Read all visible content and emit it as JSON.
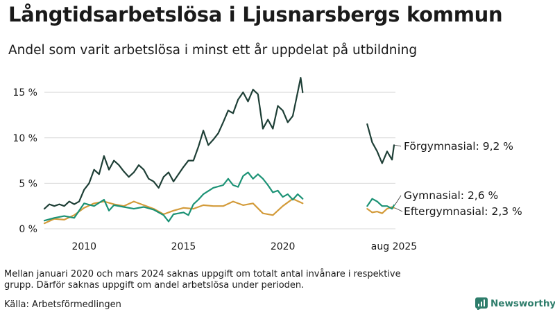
{
  "title": "Långtidsarbetslösa i Ljusnarsbergs kommun",
  "subtitle": "Andel som varit arbetslösa i minst ett år uppdelat på utbildning",
  "footnote": "Mellan januari 2020 och mars 2024 saknas uppgift om totalt antal invånare i respektive grupp. Därför saknas uppgift om andel arbetslösa under perioden.",
  "source": "Källa: Arbetsförmedlingen",
  "brand": "Newsworthy",
  "chart_data": {
    "type": "line",
    "title": "Långtidsarbetslösa i Ljusnarsbergs kommun",
    "subtitle": "Andel som varit arbetslösa i minst ett år uppdelat på utbildning",
    "xlabel": "",
    "ylabel": "",
    "ylim": [
      0,
      16
    ],
    "xlim": [
      2008,
      2026
    ],
    "y_ticks": [
      0,
      5,
      10,
      15
    ],
    "y_tick_labels": [
      "0 %",
      "5 %",
      "10 %",
      "15 %"
    ],
    "x_ticks": [
      2010,
      2015,
      2020,
      2025.6
    ],
    "x_tick_labels": [
      "2010",
      "2015",
      "2020",
      "aug 2025"
    ],
    "grid": true,
    "series": [
      {
        "name": "Förgymnasial",
        "label": "Förgymnasial: 9,2 %",
        "color": "#1e3f36",
        "segments": [
          [
            [
              2008.0,
              2.2
            ],
            [
              2008.25,
              2.7
            ],
            [
              2008.5,
              2.5
            ],
            [
              2008.75,
              2.7
            ],
            [
              2009.0,
              2.5
            ],
            [
              2009.25,
              3.0
            ],
            [
              2009.5,
              2.7
            ],
            [
              2009.75,
              3.0
            ],
            [
              2010.0,
              4.3
            ],
            [
              2010.25,
              5.0
            ],
            [
              2010.5,
              6.5
            ],
            [
              2010.75,
              6.0
            ],
            [
              2011.0,
              8.0
            ],
            [
              2011.25,
              6.5
            ],
            [
              2011.5,
              7.5
            ],
            [
              2011.75,
              7.0
            ],
            [
              2012.0,
              6.3
            ],
            [
              2012.25,
              5.7
            ],
            [
              2012.5,
              6.2
            ],
            [
              2012.75,
              7.0
            ],
            [
              2013.0,
              6.5
            ],
            [
              2013.25,
              5.5
            ],
            [
              2013.5,
              5.2
            ],
            [
              2013.75,
              4.5
            ],
            [
              2014.0,
              5.7
            ],
            [
              2014.25,
              6.2
            ],
            [
              2014.5,
              5.2
            ],
            [
              2014.75,
              6.0
            ],
            [
              2015.0,
              6.8
            ],
            [
              2015.25,
              7.5
            ],
            [
              2015.5,
              7.5
            ],
            [
              2015.75,
              9.0
            ],
            [
              2016.0,
              10.8
            ],
            [
              2016.25,
              9.2
            ],
            [
              2016.5,
              9.8
            ],
            [
              2016.75,
              10.5
            ],
            [
              2017.0,
              11.7
            ],
            [
              2017.25,
              13.0
            ],
            [
              2017.5,
              12.7
            ],
            [
              2017.75,
              14.2
            ],
            [
              2018.0,
              15.0
            ],
            [
              2018.25,
              14.0
            ],
            [
              2018.5,
              15.3
            ],
            [
              2018.75,
              14.8
            ],
            [
              2019.0,
              11.0
            ],
            [
              2019.25,
              12.0
            ],
            [
              2019.5,
              11.0
            ],
            [
              2019.75,
              13.5
            ],
            [
              2020.0,
              13.0
            ],
            [
              2020.25,
              11.7
            ],
            [
              2020.5,
              12.4
            ],
            [
              2020.75,
              15.0
            ],
            [
              2020.9,
              16.6
            ],
            [
              2021.0,
              15.0
            ]
          ],
          [
            [
              2024.25,
              11.5
            ],
            [
              2024.5,
              9.5
            ],
            [
              2024.75,
              8.5
            ],
            [
              2025.0,
              7.2
            ],
            [
              2025.25,
              8.5
            ],
            [
              2025.5,
              7.6
            ],
            [
              2025.6,
              9.2
            ]
          ]
        ]
      },
      {
        "name": "Gymnasial",
        "label": "Gymnasial: 2,6 %",
        "color": "#1b9275",
        "segments": [
          [
            [
              2008.0,
              0.9
            ],
            [
              2008.5,
              1.2
            ],
            [
              2009.0,
              1.4
            ],
            [
              2009.5,
              1.2
            ],
            [
              2010.0,
              2.8
            ],
            [
              2010.5,
              2.5
            ],
            [
              2011.0,
              3.2
            ],
            [
              2011.25,
              2.0
            ],
            [
              2011.5,
              2.6
            ],
            [
              2012.0,
              2.4
            ],
            [
              2012.5,
              2.2
            ],
            [
              2013.0,
              2.4
            ],
            [
              2013.5,
              2.1
            ],
            [
              2014.0,
              1.5
            ],
            [
              2014.25,
              0.8
            ],
            [
              2014.5,
              1.6
            ],
            [
              2015.0,
              1.8
            ],
            [
              2015.25,
              1.5
            ],
            [
              2015.5,
              2.7
            ],
            [
              2015.75,
              3.2
            ],
            [
              2016.0,
              3.8
            ],
            [
              2016.5,
              4.5
            ],
            [
              2017.0,
              4.8
            ],
            [
              2017.25,
              5.5
            ],
            [
              2017.5,
              4.8
            ],
            [
              2017.75,
              4.6
            ],
            [
              2018.0,
              5.8
            ],
            [
              2018.25,
              6.2
            ],
            [
              2018.5,
              5.5
            ],
            [
              2018.75,
              6.0
            ],
            [
              2019.0,
              5.5
            ],
            [
              2019.25,
              4.8
            ],
            [
              2019.5,
              4.0
            ],
            [
              2019.75,
              4.2
            ],
            [
              2020.0,
              3.5
            ],
            [
              2020.25,
              3.8
            ],
            [
              2020.5,
              3.2
            ],
            [
              2020.75,
              3.8
            ],
            [
              2021.0,
              3.3
            ]
          ],
          [
            [
              2024.25,
              2.5
            ],
            [
              2024.5,
              3.3
            ],
            [
              2024.75,
              3.0
            ],
            [
              2025.0,
              2.5
            ],
            [
              2025.25,
              2.5
            ],
            [
              2025.5,
              2.2
            ],
            [
              2025.6,
              2.6
            ]
          ]
        ]
      },
      {
        "name": "Eftergymnasial",
        "label": "Eftergymnasial: 2,3 %",
        "color": "#d39b3a",
        "segments": [
          [
            [
              2008.0,
              0.6
            ],
            [
              2008.5,
              1.1
            ],
            [
              2009.0,
              1.0
            ],
            [
              2009.5,
              1.5
            ],
            [
              2010.0,
              2.3
            ],
            [
              2010.5,
              2.8
            ],
            [
              2011.0,
              3.0
            ],
            [
              2011.5,
              2.7
            ],
            [
              2012.0,
              2.5
            ],
            [
              2012.5,
              3.0
            ],
            [
              2013.0,
              2.6
            ],
            [
              2013.5,
              2.2
            ],
            [
              2014.0,
              1.6
            ],
            [
              2014.5,
              2.0
            ],
            [
              2015.0,
              2.3
            ],
            [
              2015.5,
              2.2
            ],
            [
              2016.0,
              2.6
            ],
            [
              2016.5,
              2.5
            ],
            [
              2017.0,
              2.5
            ],
            [
              2017.5,
              3.0
            ],
            [
              2018.0,
              2.6
            ],
            [
              2018.5,
              2.8
            ],
            [
              2019.0,
              1.7
            ],
            [
              2019.5,
              1.5
            ],
            [
              2020.0,
              2.5
            ],
            [
              2020.5,
              3.3
            ],
            [
              2021.0,
              2.8
            ]
          ],
          [
            [
              2024.25,
              2.2
            ],
            [
              2024.5,
              1.8
            ],
            [
              2024.75,
              1.9
            ],
            [
              2025.0,
              1.7
            ],
            [
              2025.25,
              2.2
            ],
            [
              2025.5,
              2.4
            ],
            [
              2025.6,
              2.3
            ]
          ]
        ]
      }
    ]
  }
}
